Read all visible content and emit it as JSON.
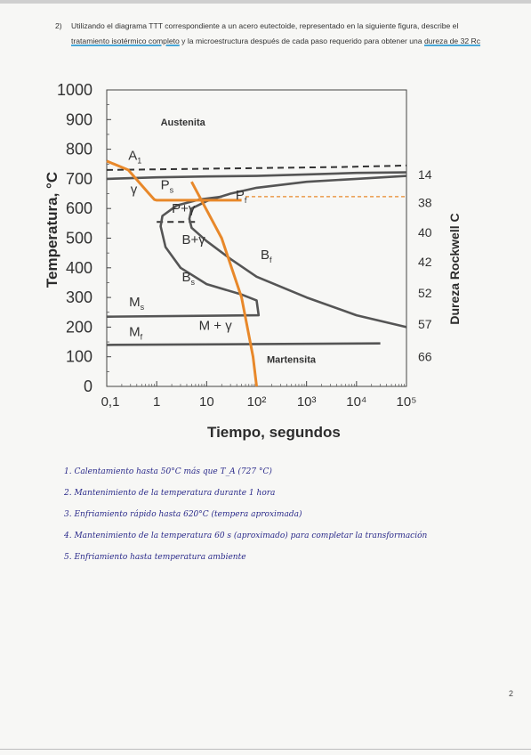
{
  "question": {
    "number": "2)",
    "segments": [
      {
        "t": "Utilizando el diagrama TTT correspondiente a un acero eutectoide, representado en la siguiente figura, describe el ",
        "hl": false
      },
      {
        "t": "tratamiento isotérmico completo",
        "hl": true
      },
      {
        "t": " y la microestructura después de cada paso requerido para obtener una ",
        "hl": false
      },
      {
        "t": "dureza de 32 Rc",
        "hl": true
      }
    ]
  },
  "chart_data": {
    "type": "line",
    "xlabel": "Tiempo, segundos",
    "ylabel": "Temperatura, °C",
    "y2label": "Dureza Rockwell C",
    "x_scale": "log",
    "xlim": [
      0.1,
      100000
    ],
    "ylim": [
      0,
      1000
    ],
    "x_ticks": [
      "0,1",
      "1",
      "10",
      "10²",
      "10³",
      "10⁴",
      "10⁵"
    ],
    "y_ticks": [
      "0",
      "100",
      "200",
      "300",
      "400",
      "500",
      "600",
      "700",
      "800",
      "900",
      "1000"
    ],
    "hardness_scale": [
      {
        "label": "14",
        "temp": 715
      },
      {
        "label": "38",
        "temp": 620
      },
      {
        "label": "40",
        "temp": 520
      },
      {
        "label": "42",
        "temp": 420
      },
      {
        "label": "52",
        "temp": 315
      },
      {
        "label": "57",
        "temp": 210
      },
      {
        "label": "66",
        "temp": 100
      }
    ],
    "regions": [
      {
        "label": "Austenita",
        "x": 1.2,
        "y": 880
      },
      {
        "label": "γ",
        "x": 0.3,
        "y": 650
      },
      {
        "label": "P+γ",
        "x": 2.0,
        "y": 585
      },
      {
        "label": "B+γ",
        "x": 3.2,
        "y": 480
      },
      {
        "label": "M + γ",
        "x": 7.0,
        "y": 190
      },
      {
        "label": "Martensita",
        "x": 160,
        "y": 80
      }
    ],
    "labels": [
      {
        "main": "A",
        "sub": "1",
        "x": 0.27,
        "y": 765
      },
      {
        "main": "P",
        "sub": "s",
        "x": 1.2,
        "y": 665
      },
      {
        "main": "P",
        "sub": "f",
        "x": 38,
        "y": 630
      },
      {
        "main": "B",
        "sub": "s",
        "x": 3.2,
        "y": 355
      },
      {
        "main": "B",
        "sub": "f",
        "x": 120,
        "y": 430
      },
      {
        "main": "M",
        "sub": "s",
        "x": 0.28,
        "y": 270
      },
      {
        "main": "M",
        "sub": "f",
        "x": 0.28,
        "y": 170
      }
    ],
    "series": [
      {
        "style": "dashed",
        "points": [
          [
            0.1,
            730
          ],
          [
            5000,
            740
          ],
          [
            100000,
            745
          ]
        ]
      },
      {
        "style": "solid",
        "points": [
          [
            0.1,
            700
          ],
          [
            1,
            705
          ],
          [
            10,
            708
          ],
          [
            100,
            710
          ],
          [
            1000,
            715
          ],
          [
            10000,
            720
          ],
          [
            100000,
            722
          ]
        ]
      },
      {
        "style": "dashed",
        "points": [
          [
            1,
            555
          ],
          [
            6,
            555
          ]
        ]
      },
      {
        "style": "solid",
        "points": [
          [
            100000,
            710
          ],
          [
            10000,
            700
          ],
          [
            1000,
            690
          ],
          [
            100,
            670
          ],
          [
            30,
            650
          ],
          [
            10,
            625
          ],
          [
            5,
            600
          ],
          [
            4.5,
            565
          ],
          [
            5,
            535
          ],
          [
            10,
            490
          ],
          [
            30,
            430
          ],
          [
            100,
            370
          ],
          [
            1000,
            300
          ],
          [
            10000,
            240
          ],
          [
            100000,
            200
          ]
        ]
      },
      {
        "style": "solid",
        "points": [
          [
            20,
            640
          ],
          [
            7,
            630
          ],
          [
            2.5,
            610
          ],
          [
            1.3,
            575
          ],
          [
            1.2,
            540
          ],
          [
            1.5,
            470
          ],
          [
            3,
            400
          ],
          [
            10,
            345
          ],
          [
            50,
            310
          ],
          [
            100,
            290
          ],
          [
            110,
            240
          ],
          [
            0.1,
            235
          ]
        ]
      },
      {
        "style": "solid",
        "points": [
          [
            0.1,
            140
          ],
          [
            30000,
            145
          ]
        ]
      }
    ],
    "path_series": [
      {
        "points": [
          [
            0.1,
            760
          ],
          [
            0.27,
            730
          ],
          [
            0.7,
            650
          ],
          [
            0.9,
            630
          ],
          [
            1,
            628
          ],
          [
            50,
            628
          ]
        ]
      },
      {
        "points": [
          [
            5,
            690
          ],
          [
            20,
            500
          ],
          [
            50,
            300
          ],
          [
            85,
            100
          ],
          [
            100,
            0
          ]
        ]
      }
    ],
    "dashed_orange": {
      "y": 640,
      "x_from": 60,
      "x_to": 100000
    }
  },
  "answers": [
    {
      "num": "1.",
      "text": "Calentamiento hasta 50°C más que T_A (727 °C)"
    },
    {
      "num": "2.",
      "text": "Mantenimiento de la temperatura durante 1 hora"
    },
    {
      "num": "3.",
      "text": "Enfriamiento rápido hasta 620°C (tempera aproximada)"
    },
    {
      "num": "4.",
      "text": "Mantenimiento de la temperatura 60 s (aproximado) para completar la transformación"
    },
    {
      "num": "5.",
      "text": "Enfriamiento hasta temperatura ambiente"
    }
  ],
  "page_number": "2",
  "colors": {
    "curve": "#555555",
    "path": "#e8882a",
    "axis": "#444444"
  }
}
